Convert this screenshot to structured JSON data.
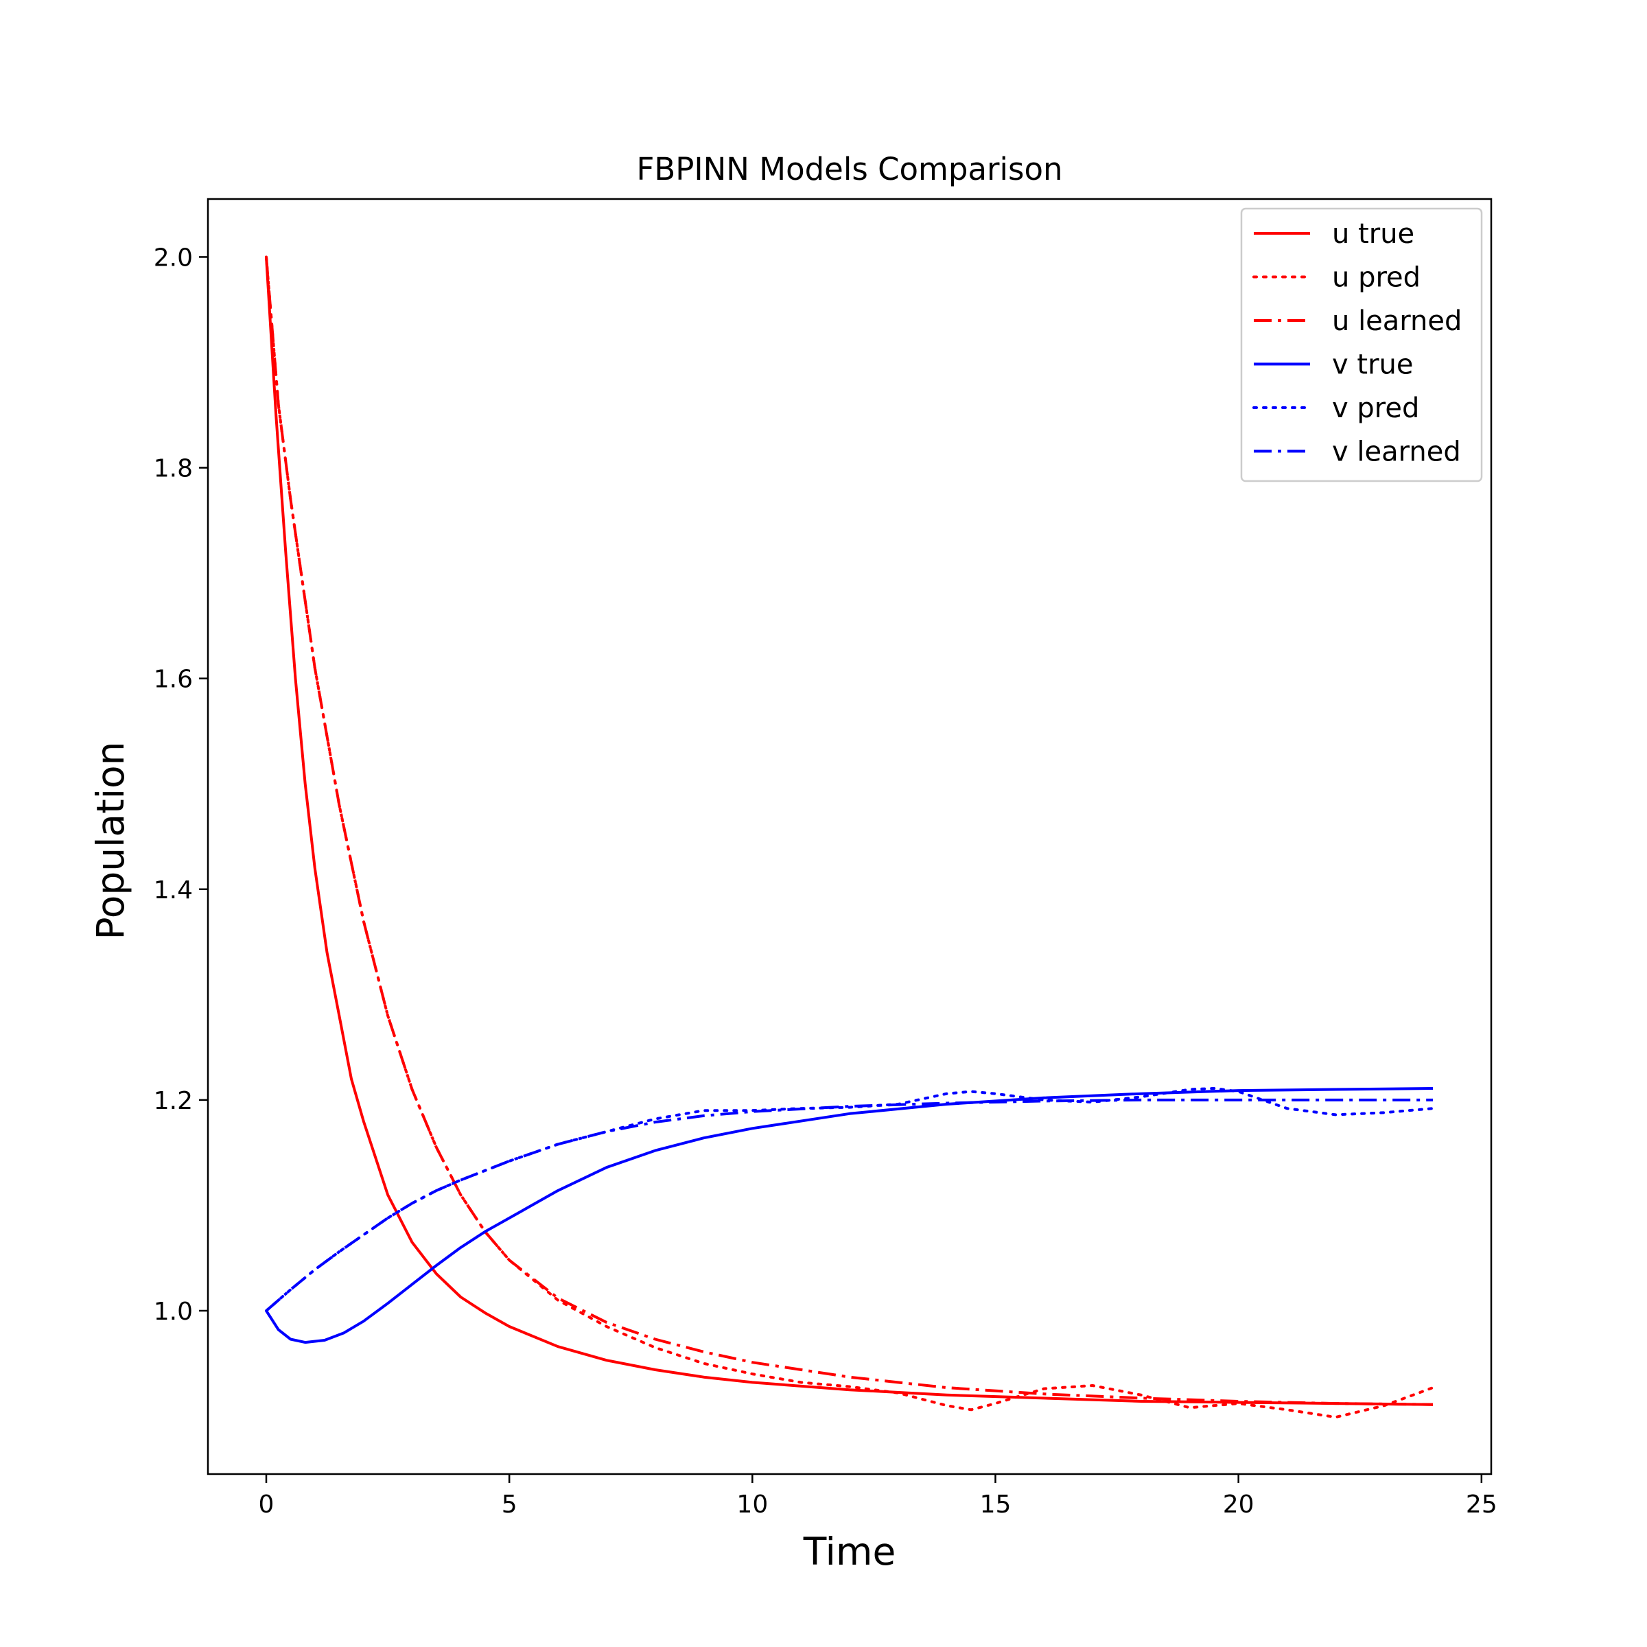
{
  "chart_data": {
    "type": "line",
    "title": "FBPINN Models Comparison",
    "xlabel": "Time",
    "ylabel": "Population",
    "xlim": [
      -1.2,
      25.2
    ],
    "ylim": [
      0.845,
      2.055
    ],
    "xticks": [
      0,
      5,
      10,
      15,
      20,
      25
    ],
    "yticks": [
      1.0,
      1.2,
      1.4,
      1.6,
      1.8,
      2.0
    ],
    "xtick_labels": [
      "0",
      "5",
      "10",
      "15",
      "20",
      "25"
    ],
    "ytick_labels": [
      "1.0",
      "1.2",
      "1.4",
      "1.6",
      "1.8",
      "2.0"
    ],
    "grid": false,
    "legend_position": "top-right",
    "series": [
      {
        "name": "u true",
        "color": "#ff0000",
        "style": "solid",
        "x": [
          0,
          0.2,
          0.4,
          0.6,
          0.8,
          1.0,
          1.25,
          1.5,
          1.75,
          2.0,
          2.5,
          3.0,
          3.5,
          4.0,
          4.5,
          5,
          6,
          7,
          8,
          9,
          10,
          12,
          14,
          16,
          18,
          20,
          22,
          24
        ],
        "y": [
          2.0,
          1.85,
          1.72,
          1.6,
          1.5,
          1.42,
          1.34,
          1.28,
          1.22,
          1.18,
          1.11,
          1.065,
          1.035,
          1.013,
          0.998,
          0.985,
          0.966,
          0.953,
          0.944,
          0.937,
          0.932,
          0.925,
          0.92,
          0.917,
          0.914,
          0.913,
          0.912,
          0.911
        ]
      },
      {
        "name": "u pred",
        "color": "#ff0000",
        "style": "dotted",
        "x": [
          0,
          0.25,
          0.5,
          0.75,
          1.0,
          1.5,
          2.0,
          2.5,
          3.0,
          3.5,
          4.0,
          4.5,
          5,
          6,
          7,
          8,
          9,
          10,
          11,
          12,
          13,
          14,
          14.5,
          15,
          16,
          17,
          18,
          19,
          20,
          21,
          22,
          23,
          24
        ],
        "y": [
          2.0,
          1.86,
          1.77,
          1.69,
          1.61,
          1.48,
          1.37,
          1.28,
          1.21,
          1.155,
          1.11,
          1.075,
          1.048,
          1.01,
          0.985,
          0.965,
          0.95,
          0.94,
          0.932,
          0.928,
          0.922,
          0.91,
          0.906,
          0.912,
          0.926,
          0.929,
          0.92,
          0.908,
          0.912,
          0.906,
          0.899,
          0.91,
          0.927
        ]
      },
      {
        "name": "u learned",
        "color": "#ff0000",
        "style": "dashdot",
        "x": [
          0,
          0.25,
          0.5,
          0.75,
          1.0,
          1.5,
          2.0,
          2.5,
          3.0,
          3.5,
          4.0,
          4.5,
          5,
          6,
          7,
          8,
          9,
          10,
          12,
          14,
          16,
          18,
          20,
          22,
          24
        ],
        "y": [
          2.0,
          1.86,
          1.77,
          1.69,
          1.61,
          1.48,
          1.37,
          1.28,
          1.21,
          1.155,
          1.11,
          1.075,
          1.048,
          1.012,
          0.989,
          0.973,
          0.961,
          0.951,
          0.937,
          0.927,
          0.921,
          0.917,
          0.914,
          0.912,
          0.911
        ]
      },
      {
        "name": "v true",
        "color": "#0000ff",
        "style": "solid",
        "x": [
          0,
          0.25,
          0.5,
          0.8,
          1.2,
          1.6,
          2.0,
          2.5,
          3.0,
          3.5,
          4.0,
          4.5,
          5,
          6,
          7,
          8,
          9,
          10,
          12,
          14,
          16,
          18,
          20,
          22,
          24
        ],
        "y": [
          1.0,
          0.982,
          0.973,
          0.97,
          0.972,
          0.979,
          0.99,
          1.007,
          1.025,
          1.043,
          1.06,
          1.075,
          1.088,
          1.114,
          1.136,
          1.152,
          1.164,
          1.173,
          1.187,
          1.196,
          1.202,
          1.206,
          1.209,
          1.21,
          1.211
        ]
      },
      {
        "name": "v pred",
        "color": "#0000ff",
        "style": "dotted",
        "x": [
          0,
          0.5,
          1.0,
          1.5,
          2.0,
          2.5,
          3.0,
          3.5,
          4.0,
          4.5,
          5,
          6,
          7,
          8,
          9,
          10,
          11,
          12,
          13,
          14,
          14.5,
          15,
          16,
          17,
          18,
          19,
          19.5,
          20,
          20.5,
          21,
          22,
          23,
          24
        ],
        "y": [
          1.0,
          1.02,
          1.039,
          1.056,
          1.072,
          1.088,
          1.102,
          1.114,
          1.124,
          1.133,
          1.142,
          1.158,
          1.17,
          1.182,
          1.19,
          1.19,
          1.192,
          1.193,
          1.196,
          1.206,
          1.208,
          1.206,
          1.2,
          1.198,
          1.203,
          1.21,
          1.211,
          1.208,
          1.2,
          1.192,
          1.186,
          1.188,
          1.192
        ]
      },
      {
        "name": "v learned",
        "color": "#0000ff",
        "style": "dashdot",
        "x": [
          0,
          0.5,
          1.0,
          1.5,
          2.0,
          2.5,
          3.0,
          3.5,
          4.0,
          4.5,
          5,
          6,
          7,
          8,
          9,
          10,
          12,
          14,
          16,
          18,
          20,
          22,
          24
        ],
        "y": [
          1.0,
          1.02,
          1.039,
          1.056,
          1.072,
          1.088,
          1.102,
          1.114,
          1.124,
          1.133,
          1.142,
          1.158,
          1.17,
          1.179,
          1.185,
          1.189,
          1.194,
          1.197,
          1.199,
          1.2,
          1.2,
          1.2,
          1.2
        ]
      }
    ]
  }
}
